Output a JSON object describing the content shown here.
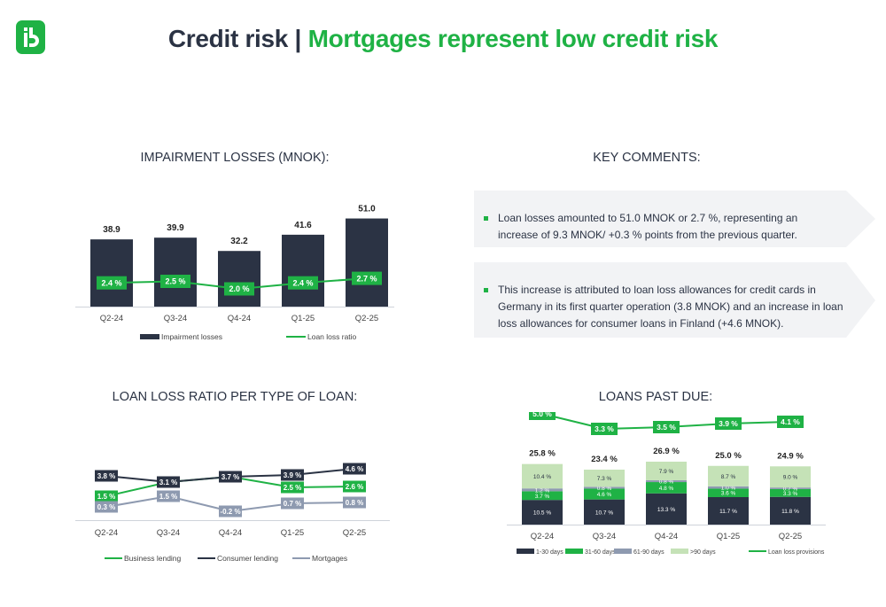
{
  "header": {
    "title_part1": "Credit risk | ",
    "title_part2": "Mortgages represent low credit risk"
  },
  "colors": {
    "navy": "#2b3344",
    "green": "#1fb245",
    "grey": "#8e9ab0",
    "light_green": "#c5e2b7",
    "chevron_bg": "#f2f3f5"
  },
  "icons": {
    "logo": "brand-logo-icon",
    "bullet": "square-bullet-icon"
  },
  "sections": {
    "impairment_title": "IMPAIRMENT LOSSES (MNOK):",
    "comments_title": "KEY COMMENTS:",
    "loan_ratio_title": "LOAN LOSS RATIO PER TYPE OF LOAN:",
    "past_due_title": "LOANS PAST DUE:"
  },
  "comments": [
    "Loan losses amounted to 51.0 MNOK or 2.7 %, representing an increase of 9.3 MNOK/ +0.3 % points from the previous quarter.",
    "This increase is attributed to loan loss allowances for credit cards in Germany in its first quarter operation (3.8 MNOK) and an increase in loan loss allowances for consumer loans in Finland (+4.6 MNOK)."
  ],
  "chart_data": [
    {
      "type": "bar",
      "title": "IMPAIRMENT LOSSES (MNOK):",
      "categories": [
        "Q2-24",
        "Q3-24",
        "Q4-24",
        "Q1-25",
        "Q2-25"
      ],
      "series": [
        {
          "name": "Impairment losses",
          "type": "bar",
          "values": [
            38.9,
            39.9,
            32.2,
            41.6,
            51.0
          ],
          "labels": [
            "38.9",
            "39.9",
            "32.2",
            "41.6",
            "51.0"
          ]
        },
        {
          "name": "Loan loss ratio",
          "type": "line",
          "values": [
            2.4,
            2.5,
            2.0,
            2.4,
            2.7
          ],
          "labels": [
            "2.4 %",
            "2.5 %",
            "2.0 %",
            "2.4 %",
            "2.7 %"
          ]
        }
      ],
      "legend": "bottom"
    },
    {
      "type": "line",
      "title": "LOAN LOSS RATIO PER TYPE OF LOAN:",
      "categories": [
        "Q2-24",
        "Q3-24",
        "Q4-24",
        "Q1-25",
        "Q2-25"
      ],
      "series": [
        {
          "name": "Business lending",
          "values": [
            1.5,
            3.1,
            3.7,
            2.5,
            2.6
          ],
          "labels": [
            "1.5 %",
            "",
            "",
            "2.5 %",
            "2.6 %"
          ]
        },
        {
          "name": "Consumer lending",
          "values": [
            3.8,
            3.1,
            3.7,
            3.9,
            4.6
          ],
          "labels": [
            "3.8 %",
            "3.1 %",
            "3.7 %",
            "3.9 %",
            "4.6 %"
          ]
        },
        {
          "name": "Mortgages",
          "values": [
            0.3,
            1.5,
            -0.2,
            0.7,
            0.8
          ],
          "labels": [
            "0.3 %",
            "1.5 %",
            "-0.2 %",
            "0.7 %",
            "0.8 %"
          ]
        }
      ],
      "legend": "bottom"
    },
    {
      "type": "bar",
      "stacked": true,
      "title": "LOANS PAST DUE:",
      "categories": [
        "Q2-24",
        "Q3-24",
        "Q4-24",
        "Q1-25",
        "Q2-25"
      ],
      "totals": [
        "25.8 %",
        "23.4 %",
        "26.9 %",
        "25.0 %",
        "24.9 %"
      ],
      "series": [
        {
          "name": "1-30 days",
          "values": [
            10.5,
            10.7,
            13.3,
            11.7,
            11.8
          ],
          "labels": [
            "10.5 %",
            "10.7 %",
            "13.3 %",
            "11.7 %",
            "11.8 %"
          ]
        },
        {
          "name": "31-60 days",
          "values": [
            3.7,
            4.6,
            4.8,
            3.6,
            3.3
          ],
          "labels": [
            "3.7 %",
            "4.6 %",
            "4.8 %",
            "3.6 %",
            "3.3 %"
          ]
        },
        {
          "name": "61-90 days",
          "values": [
            1.2,
            0.8,
            0.8,
            1.0,
            0.7
          ],
          "labels": [
            "1.2 %",
            "0.8 %",
            "0.8 %",
            "1.0 %",
            "0.7 %"
          ]
        },
        {
          "name": ">90 days",
          "values": [
            10.4,
            7.3,
            7.9,
            8.7,
            9.0
          ],
          "labels": [
            "10.4 %",
            "7.3 %",
            "7.9 %",
            "8.7 %",
            "9.0 %"
          ]
        },
        {
          "name": "Loan loss provisions",
          "type": "line",
          "values": [
            5.0,
            3.3,
            3.5,
            3.9,
            4.1
          ],
          "labels": [
            "5.0 %",
            "3.3 %",
            "3.5 %",
            "3.9 %",
            "4.1 %"
          ]
        }
      ],
      "legend": "bottom"
    }
  ]
}
